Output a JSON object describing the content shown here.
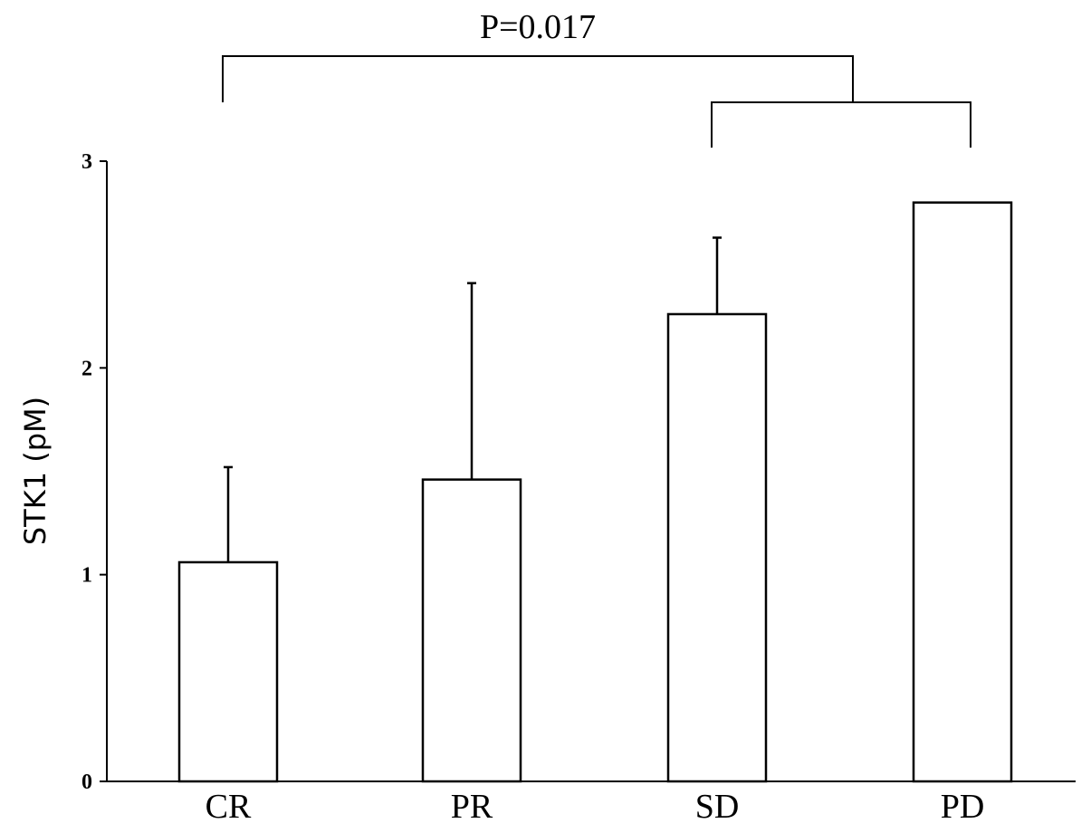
{
  "chart_data": {
    "type": "bar",
    "categories": [
      "CR",
      "PR",
      "SD",
      "PD"
    ],
    "values": [
      1.06,
      1.46,
      2.26,
      2.8
    ],
    "error_upper": [
      1.52,
      2.41,
      2.63,
      null
    ],
    "ylabel": "STK1 (pM)",
    "xlabel": "",
    "ylim": [
      0,
      3
    ],
    "yticks": [
      0,
      1,
      2,
      3
    ],
    "grid": false,
    "annotation": {
      "text": "P=0.017",
      "left_group": [
        "CR"
      ],
      "right_group": [
        "SD",
        "PD"
      ]
    }
  }
}
